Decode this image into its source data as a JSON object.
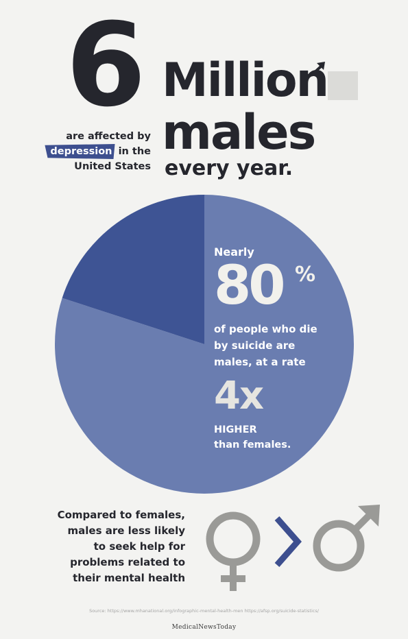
{
  "header": {
    "big_number": "6",
    "million": "Million",
    "males": "males",
    "every_year": "every year."
  },
  "affected": {
    "line1": "are affected by",
    "tag": "depression",
    "line2_rest": " in the",
    "line3": "United States"
  },
  "stat": {
    "nearly": "Nearly",
    "percent_number": "80",
    "percent_sign": "%",
    "desc_lines": [
      "of people who die",
      "by suicide are",
      "males, at a rate"
    ],
    "multiplier": "4x",
    "higher": "HIGHER",
    "than": "than females."
  },
  "comparison": {
    "lines": [
      "Compared to females,",
      "males are less likely",
      "to seek help for",
      "problems related to",
      "their mental health"
    ]
  },
  "source": "Source: https://www.mhanational.org/infographic-mental-health-men    https://afsp.org/suicide-statistics/",
  "brand": "MedicalNewsToday",
  "chart_data": {
    "type": "pie",
    "slices": [
      {
        "value": 80,
        "color": "#6a7db0"
      },
      {
        "value": 20,
        "color": "#3e5494"
      }
    ]
  },
  "colors": {
    "background": "#f3f3f1",
    "dark_text": "#25262d",
    "pie_major": "#6a7db0",
    "pie_minor": "#3e5494",
    "icon_gray": "#9a9a97",
    "greater_than": "#3d4f8f"
  },
  "icons": [
    "male-symbol-icon",
    "female-symbol-icon",
    "greater-than-icon"
  ]
}
